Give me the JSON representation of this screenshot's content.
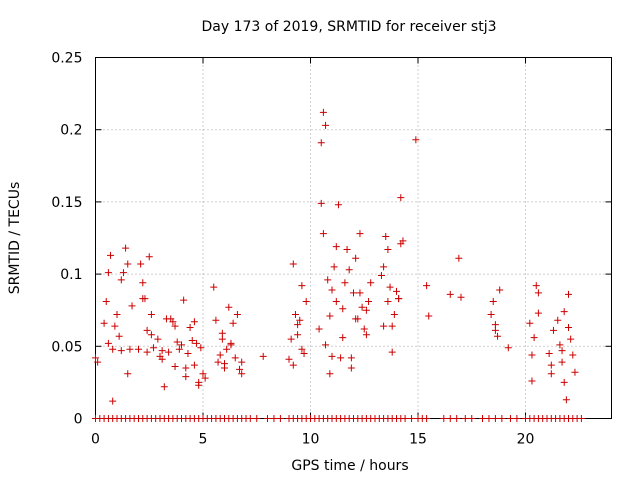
{
  "chart_data": {
    "type": "scatter",
    "title": "Day 173 of 2019, SRMTID for receiver stj3",
    "xlabel": "GPS time / hours",
    "ylabel": "SRMTID / TECUs",
    "xlim": [
      0,
      24
    ],
    "ylim": [
      0,
      0.25
    ],
    "xticks": [
      0,
      5,
      10,
      15,
      20
    ],
    "xtick_labels": [
      "0",
      "5",
      "10",
      "15",
      "20"
    ],
    "yticks": [
      0,
      0.05,
      0.1,
      0.15,
      0.2,
      0.25
    ],
    "ytick_labels": [
      "0",
      "0.05",
      "0.1",
      "0.15",
      "0.2",
      "0.25"
    ],
    "grid": true,
    "marker": "plus",
    "color": "#cc0000",
    "series": [
      {
        "name": "SRMTID",
        "x": [
          0.0,
          0.1,
          0.4,
          0.5,
          0.6,
          0.7,
          0.8,
          0.9,
          1.0,
          1.1,
          1.2,
          1.3,
          1.4,
          1.5,
          1.6,
          1.7,
          2.0,
          2.1,
          2.2,
          2.3,
          2.4,
          2.5,
          2.6,
          2.7,
          2.9,
          3.0,
          3.1,
          3.2,
          3.4,
          3.5,
          3.6,
          3.7,
          3.8,
          3.9,
          4.0,
          4.1,
          4.2,
          4.3,
          4.4,
          4.5,
          4.6,
          4.7,
          4.8,
          4.9,
          5.0,
          5.5,
          5.6,
          5.7,
          5.8,
          5.9,
          6.0,
          6.1,
          6.2,
          6.3,
          6.4,
          6.5,
          6.6,
          6.7,
          6.8,
          7.8,
          9.0,
          9.1,
          9.2,
          9.3,
          9.4,
          9.5,
          9.6,
          9.7,
          9.8,
          10.4,
          10.5,
          10.6,
          10.7,
          10.8,
          10.9,
          11.0,
          11.1,
          11.2,
          11.3,
          11.4,
          11.5,
          11.6,
          11.7,
          11.8,
          11.9,
          12.0,
          12.1,
          12.2,
          12.3,
          12.4,
          12.5,
          12.6,
          12.7,
          12.8,
          13.3,
          13.4,
          13.5,
          13.6,
          13.7,
          13.8,
          13.9,
          14.0,
          14.1,
          14.2,
          14.3,
          14.9,
          15.4,
          15.5,
          16.5,
          16.9,
          17.0,
          18.4,
          18.5,
          18.6,
          18.7,
          18.8,
          19.2,
          20.2,
          20.3,
          20.4,
          20.5,
          20.6,
          21.1,
          21.2,
          21.3,
          21.5,
          21.6,
          21.7,
          21.8,
          21.9,
          22.0,
          22.1,
          22.2,
          22.3,
          0.6,
          1.2,
          1.5,
          2.2,
          2.6,
          3.1,
          3.7,
          4.2,
          4.6,
          5.1,
          5.9,
          6.3,
          6.8,
          9.2,
          9.6,
          10.5,
          10.6,
          10.7,
          10.9,
          11.2,
          11.5,
          11.9,
          12.3,
          12.6,
          13.4,
          13.8,
          14.1,
          14.2,
          18.6,
          20.3,
          20.6,
          21.2,
          21.7,
          22.0,
          0.8,
          2.4,
          3.3,
          4.8,
          6.0,
          9.4,
          11.0,
          12.1,
          13.6,
          21.8
        ],
        "y": [
          0.042,
          0.039,
          0.066,
          0.081,
          0.052,
          0.113,
          0.048,
          0.064,
          0.072,
          0.057,
          0.047,
          0.101,
          0.118,
          0.031,
          0.048,
          0.078,
          0.048,
          0.107,
          0.094,
          0.083,
          0.061,
          0.112,
          0.072,
          0.049,
          0.055,
          0.043,
          0.047,
          0.022,
          0.046,
          0.069,
          0.067,
          0.036,
          0.053,
          0.048,
          0.051,
          0.082,
          0.029,
          0.045,
          0.063,
          0.054,
          0.037,
          0.052,
          0.025,
          0.049,
          0.031,
          0.091,
          0.068,
          0.039,
          0.044,
          0.055,
          0.038,
          0.048,
          0.077,
          0.051,
          0.066,
          0.042,
          0.072,
          0.034,
          0.039,
          0.043,
          0.041,
          0.055,
          0.107,
          0.072,
          0.065,
          0.068,
          0.092,
          0.045,
          0.081,
          0.062,
          0.149,
          0.212,
          0.203,
          0.096,
          0.071,
          0.089,
          0.105,
          0.081,
          0.148,
          0.042,
          0.076,
          0.094,
          0.117,
          0.103,
          0.042,
          0.087,
          0.111,
          0.069,
          0.087,
          0.077,
          0.062,
          0.075,
          0.081,
          0.094,
          0.099,
          0.064,
          0.126,
          0.081,
          0.091,
          0.064,
          0.072,
          0.088,
          0.083,
          0.153,
          0.123,
          0.193,
          0.092,
          0.071,
          0.086,
          0.111,
          0.084,
          0.072,
          0.081,
          0.065,
          0.057,
          0.089,
          0.049,
          0.066,
          0.044,
          0.056,
          0.092,
          0.073,
          0.045,
          0.031,
          0.061,
          0.068,
          0.051,
          0.047,
          0.074,
          0.013,
          0.063,
          0.055,
          0.044,
          0.032,
          0.101,
          0.096,
          0.107,
          0.083,
          0.058,
          0.041,
          0.064,
          0.035,
          0.067,
          0.028,
          0.059,
          0.052,
          0.031,
          0.037,
          0.048,
          0.191,
          0.128,
          0.051,
          0.031,
          0.119,
          0.056,
          0.035,
          0.128,
          0.058,
          0.105,
          0.046,
          0.083,
          0.121,
          0.061,
          0.026,
          0.087,
          0.037,
          0.039,
          0.086,
          0.012,
          0.046,
          0.069,
          0.023,
          0.035,
          0.058,
          0.043,
          0.069,
          0.117,
          0.025
        ],
        "zero_x": [
          0.0,
          0.2,
          0.4,
          0.6,
          0.8,
          1.0,
          1.2,
          1.4,
          1.6,
          1.8,
          2.0,
          2.2,
          2.4,
          2.6,
          2.8,
          3.0,
          3.2,
          3.4,
          3.6,
          3.8,
          4.0,
          4.2,
          4.4,
          4.6,
          4.8,
          5.0,
          5.2,
          5.4,
          5.6,
          5.8,
          6.0,
          6.2,
          6.4,
          6.6,
          6.8,
          7.0,
          7.2,
          7.5,
          8.0,
          8.3,
          8.6,
          9.0,
          9.2,
          9.4,
          9.6,
          9.8,
          10.0,
          10.2,
          10.4,
          10.6,
          10.8,
          11.0,
          11.2,
          11.4,
          11.6,
          11.8,
          12.0,
          12.2,
          12.4,
          12.6,
          12.8,
          13.0,
          13.2,
          13.4,
          13.6,
          13.8,
          14.0,
          14.2,
          14.4,
          14.7,
          15.0,
          15.2,
          15.4,
          16.2,
          16.5,
          16.8,
          17.2,
          17.5,
          18.0,
          18.3,
          18.6,
          18.9,
          19.3,
          19.6,
          20.0,
          20.2,
          20.4,
          20.6,
          20.8,
          21.0,
          21.2,
          21.4,
          21.6,
          21.8,
          22.0,
          22.2,
          22.4,
          22.6
        ]
      }
    ]
  }
}
